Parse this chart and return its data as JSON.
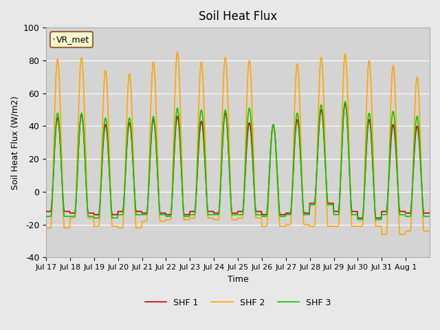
{
  "title": "Soil Heat Flux",
  "ylabel": "Soil Heat Flux (W/m2)",
  "xlabel": "Time",
  "ylim": [
    -40,
    100
  ],
  "yticks": [
    -40,
    -20,
    0,
    20,
    40,
    60,
    80,
    100
  ],
  "legend_label": "VR_met",
  "series_labels": [
    "SHF 1",
    "SHF 2",
    "SHF 3"
  ],
  "colors": [
    "#cc0000",
    "#ffa500",
    "#00cc00"
  ],
  "bg_color": "#e8e8e8",
  "plot_bg_color": "#d4d4d4",
  "xtick_labels": [
    "Jul 17",
    "Jul 18",
    "Jul 19",
    "Jul 20",
    "Jul 21",
    "Jul 22",
    "Jul 23",
    "Jul 24",
    "Jul 25",
    "Jul 26",
    "Jul 27",
    "Jul 28",
    "Jul 29",
    "Jul 30",
    "Jul 31",
    "Aug 1"
  ],
  "n_days": 16,
  "points_per_day": 48,
  "shf1_day_peaks": [
    45,
    47,
    41,
    42,
    44,
    46,
    43,
    48,
    42,
    41,
    44,
    50,
    54,
    44,
    41,
    40
  ],
  "shf1_night_troughs": [
    -12,
    -13,
    -14,
    -12,
    -13,
    -14,
    -12,
    -13,
    -12,
    -14,
    -13,
    -7,
    -12,
    -16,
    -12,
    -13
  ],
  "shf2_day_peaks": [
    81,
    82,
    74,
    72,
    79,
    85,
    79,
    82,
    80,
    40,
    78,
    82,
    84,
    80,
    77,
    70
  ],
  "shf2_night_troughs": [
    -22,
    -16,
    -21,
    -22,
    -18,
    -17,
    -16,
    -17,
    -16,
    -21,
    -20,
    -21,
    -21,
    -21,
    -26,
    -24
  ],
  "shf3_day_peaks": [
    48,
    48,
    45,
    45,
    46,
    51,
    50,
    50,
    51,
    41,
    48,
    53,
    55,
    48,
    49,
    46
  ],
  "shf3_night_troughs": [
    -15,
    -15,
    -16,
    -14,
    -14,
    -15,
    -14,
    -14,
    -14,
    -15,
    -14,
    -8,
    -14,
    -17,
    -14,
    -15
  ],
  "linewidth": 1.2
}
